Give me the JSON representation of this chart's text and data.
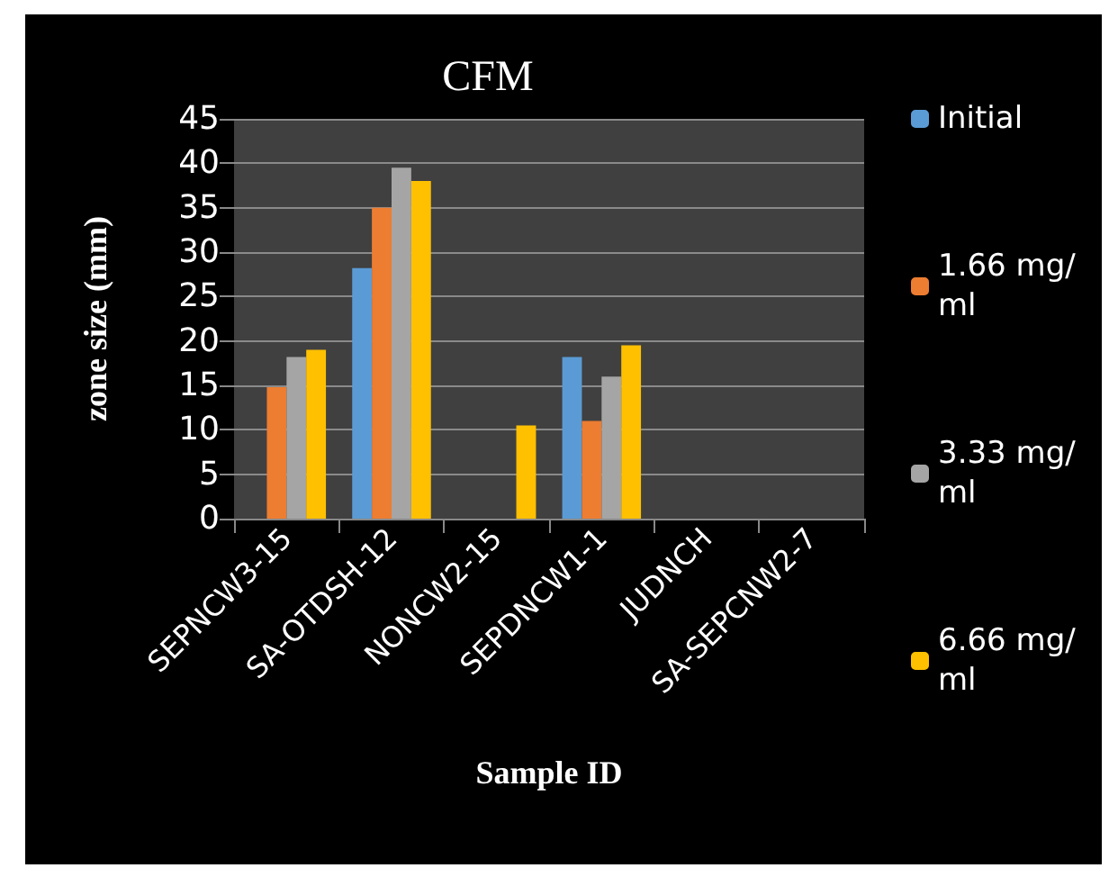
{
  "chart_data": {
    "type": "bar",
    "title": "CFM",
    "xlabel": "Sample ID",
    "ylabel": "zone size (mm)",
    "categories": [
      "SEPNCW3-15",
      "SA-OTDSH-12",
      "NONCW2-15",
      "SEPDNCW1-1",
      "JUDNCH",
      "SA-SEPCNW2-7"
    ],
    "series": [
      {
        "name": "Initial",
        "color": "#5b9bd5",
        "values": [
          0,
          28.2,
          0,
          18.2,
          0,
          0
        ]
      },
      {
        "name": "1.66 mg/ml",
        "color": "#ed7d31",
        "values": [
          14.8,
          35,
          0,
          11,
          0,
          0
        ]
      },
      {
        "name": "3.33 mg/ml",
        "color": "#a5a5a5",
        "values": [
          18.2,
          39.5,
          0,
          16,
          0,
          0
        ]
      },
      {
        "name": "6.66 mg/ml",
        "color": "#ffc000",
        "values": [
          19,
          38,
          10.5,
          19.5,
          0,
          0
        ]
      }
    ],
    "ylim": [
      0,
      45
    ],
    "yticks": [
      0,
      5,
      10,
      15,
      20,
      25,
      30,
      35,
      40,
      45
    ],
    "grid": "y",
    "legend": "right"
  }
}
